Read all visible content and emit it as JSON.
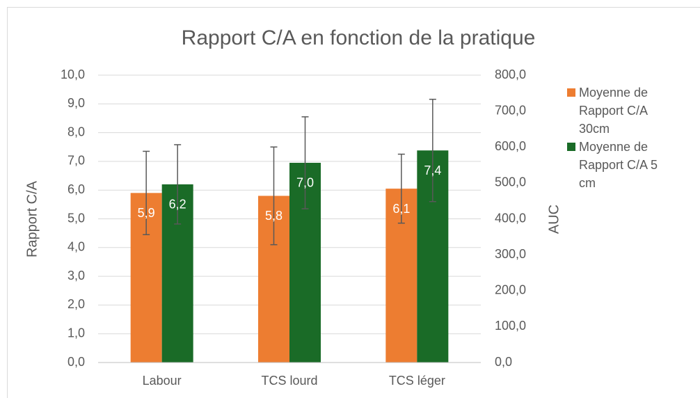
{
  "chart_data": {
    "type": "bar",
    "title": "Rapport C/A en fonction de la pratique",
    "ylabel": "Rapport C/A",
    "y2label": "AUC",
    "categories": [
      "Labour",
      "TCS lourd",
      "TCS léger"
    ],
    "series": [
      {
        "name": "Moyenne de Rapport C/A 30cm",
        "color": "#ed7d31",
        "values": [
          5.9,
          5.8,
          6.05
        ],
        "value_labels": [
          "5,9",
          "5,8",
          "6,1"
        ],
        "errors": [
          1.45,
          1.7,
          1.2
        ]
      },
      {
        "name": "Moyenne de Rapport C/A 5 cm",
        "color": "#1a6b27",
        "values": [
          6.2,
          6.95,
          7.38
        ],
        "value_labels": [
          "6,2",
          "7,0",
          "7,4"
        ],
        "errors": [
          1.38,
          1.6,
          1.78
        ]
      }
    ],
    "ylim": [
      0,
      10
    ],
    "yticks": [
      {
        "value": 0,
        "label": "0,0"
      },
      {
        "value": 1,
        "label": "1,0"
      },
      {
        "value": 2,
        "label": "2,0"
      },
      {
        "value": 3,
        "label": "3,0"
      },
      {
        "value": 4,
        "label": "4,0"
      },
      {
        "value": 5,
        "label": "5,0"
      },
      {
        "value": 6,
        "label": "6,0"
      },
      {
        "value": 7,
        "label": "7,0"
      },
      {
        "value": 8,
        "label": "8,0"
      },
      {
        "value": 9,
        "label": "9,0"
      },
      {
        "value": 10,
        "label": "10,0"
      }
    ],
    "y2lim": [
      0,
      800
    ],
    "y2ticks": [
      {
        "value": 0,
        "label": "0,0"
      },
      {
        "value": 100,
        "label": "100,0"
      },
      {
        "value": 200,
        "label": "200,0"
      },
      {
        "value": 300,
        "label": "300,0"
      },
      {
        "value": 400,
        "label": "400,0"
      },
      {
        "value": 500,
        "label": "500,0"
      },
      {
        "value": 600,
        "label": "600,0"
      },
      {
        "value": 700,
        "label": "700,0"
      },
      {
        "value": 800,
        "label": "800,0"
      }
    ],
    "grid": true,
    "legend": "right"
  }
}
